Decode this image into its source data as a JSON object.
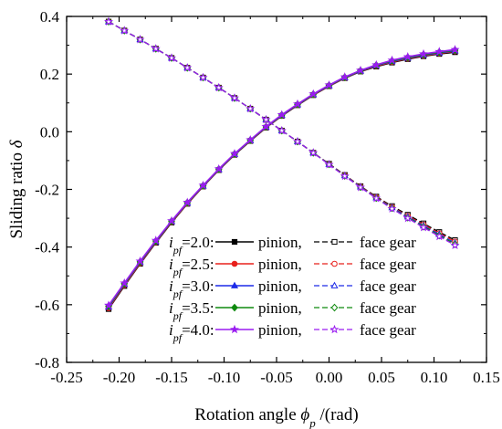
{
  "chart_data": {
    "type": "line",
    "xlabel": {
      "main": "Rotation angle ",
      "symbol": "ϕ",
      "sub": "p",
      "unit": " /(rad)"
    },
    "ylabel": {
      "main": "Sliding ratio ",
      "symbol": "δ"
    },
    "xlim": [
      -0.25,
      0.15
    ],
    "ylim": [
      -0.8,
      0.4
    ],
    "xticks": [
      -0.25,
      -0.2,
      -0.15,
      -0.1,
      -0.05,
      0.0,
      0.05,
      0.1,
      0.15
    ],
    "xtick_labels": [
      "-0.25",
      "-0.20",
      "-0.15",
      "-0.10",
      "-0.05",
      "0.00",
      "0.05",
      "0.10",
      "0.15"
    ],
    "yticks": [
      -0.8,
      -0.6,
      -0.4,
      -0.2,
      0.0,
      0.2,
      0.4
    ],
    "ytick_labels": [
      "-0.8",
      "-0.6",
      "-0.4",
      "-0.2",
      "0.0",
      "0.2",
      "0.4"
    ],
    "grid": false,
    "legend_position": "lower-right",
    "legend_words": {
      "pinion": "pinion,",
      "face": "face gear"
    },
    "x": [
      -0.21,
      -0.195,
      -0.18,
      -0.165,
      -0.15,
      -0.135,
      -0.12,
      -0.105,
      -0.09,
      -0.075,
      -0.06,
      -0.045,
      -0.03,
      -0.015,
      0.0,
      0.015,
      0.03,
      0.045,
      0.06,
      0.075,
      0.09,
      0.105,
      0.12
    ],
    "series": [
      {
        "ratio_label": {
          "var": "i",
          "sub": "pf",
          "value": "=2.0:"
        },
        "color": "#000000",
        "marker": "square",
        "pinion": [
          -0.615,
          -0.535,
          -0.458,
          -0.385,
          -0.315,
          -0.25,
          -0.19,
          -0.133,
          -0.08,
          -0.032,
          0.014,
          0.055,
          0.092,
          0.127,
          0.158,
          0.186,
          0.209,
          0.226,
          0.24,
          0.252,
          0.262,
          0.27,
          0.276
        ],
        "face": [
          0.382,
          0.351,
          0.32,
          0.288,
          0.256,
          0.222,
          0.188,
          0.153,
          0.117,
          0.08,
          0.042,
          0.004,
          -0.034,
          -0.073,
          -0.111,
          -0.15,
          -0.189,
          -0.225,
          -0.258,
          -0.288,
          -0.318,
          -0.348,
          -0.376
        ]
      },
      {
        "ratio_label": {
          "var": "i",
          "sub": "pf",
          "value": "=2.5:"
        },
        "color": "#e8201c",
        "marker": "circle",
        "pinion": [
          -0.612,
          -0.532,
          -0.456,
          -0.383,
          -0.313,
          -0.249,
          -0.189,
          -0.132,
          -0.079,
          -0.031,
          0.015,
          0.056,
          0.093,
          0.128,
          0.159,
          0.187,
          0.21,
          0.228,
          0.242,
          0.254,
          0.264,
          0.272,
          0.279
        ],
        "face": [
          0.382,
          0.351,
          0.32,
          0.288,
          0.256,
          0.222,
          0.188,
          0.153,
          0.117,
          0.08,
          0.042,
          0.004,
          -0.034,
          -0.073,
          -0.112,
          -0.151,
          -0.19,
          -0.227,
          -0.261,
          -0.292,
          -0.322,
          -0.352,
          -0.381
        ]
      },
      {
        "ratio_label": {
          "var": "i",
          "sub": "pf",
          "value": "=3.0:"
        },
        "color": "#1c2ae8",
        "marker": "triangle",
        "pinion": [
          -0.608,
          -0.529,
          -0.453,
          -0.381,
          -0.311,
          -0.247,
          -0.188,
          -0.131,
          -0.078,
          -0.03,
          0.016,
          0.057,
          0.094,
          0.129,
          0.16,
          0.188,
          0.211,
          0.23,
          0.244,
          0.256,
          0.266,
          0.274,
          0.281
        ],
        "face": [
          0.382,
          0.351,
          0.32,
          0.288,
          0.256,
          0.222,
          0.188,
          0.153,
          0.117,
          0.08,
          0.042,
          0.004,
          -0.034,
          -0.073,
          -0.113,
          -0.152,
          -0.191,
          -0.229,
          -0.263,
          -0.295,
          -0.326,
          -0.356,
          -0.386
        ]
      },
      {
        "ratio_label": {
          "var": "i",
          "sub": "pf",
          "value": "=3.5:"
        },
        "color": "#0f8a0f",
        "marker": "diamond",
        "pinion": [
          -0.605,
          -0.527,
          -0.451,
          -0.379,
          -0.31,
          -0.246,
          -0.187,
          -0.13,
          -0.077,
          -0.029,
          0.017,
          0.058,
          0.095,
          0.13,
          0.161,
          0.189,
          0.212,
          0.231,
          0.246,
          0.258,
          0.268,
          0.276,
          0.283
        ],
        "face": [
          0.382,
          0.351,
          0.32,
          0.288,
          0.256,
          0.222,
          0.188,
          0.153,
          0.117,
          0.08,
          0.042,
          0.004,
          -0.034,
          -0.073,
          -0.113,
          -0.153,
          -0.192,
          -0.23,
          -0.265,
          -0.298,
          -0.329,
          -0.36,
          -0.39
        ]
      },
      {
        "ratio_label": {
          "var": "i",
          "sub": "pf",
          "value": "=4.0:"
        },
        "color": "#9a1cf0",
        "marker": "star",
        "pinion": [
          -0.602,
          -0.525,
          -0.449,
          -0.377,
          -0.309,
          -0.245,
          -0.186,
          -0.129,
          -0.076,
          -0.028,
          0.018,
          0.059,
          0.096,
          0.131,
          0.162,
          0.19,
          0.213,
          0.232,
          0.248,
          0.26,
          0.27,
          0.278,
          0.285
        ],
        "face": [
          0.382,
          0.351,
          0.32,
          0.288,
          0.256,
          0.222,
          0.188,
          0.153,
          0.117,
          0.08,
          0.042,
          0.004,
          -0.034,
          -0.073,
          -0.114,
          -0.154,
          -0.193,
          -0.231,
          -0.267,
          -0.3,
          -0.332,
          -0.363,
          -0.394
        ]
      }
    ]
  }
}
